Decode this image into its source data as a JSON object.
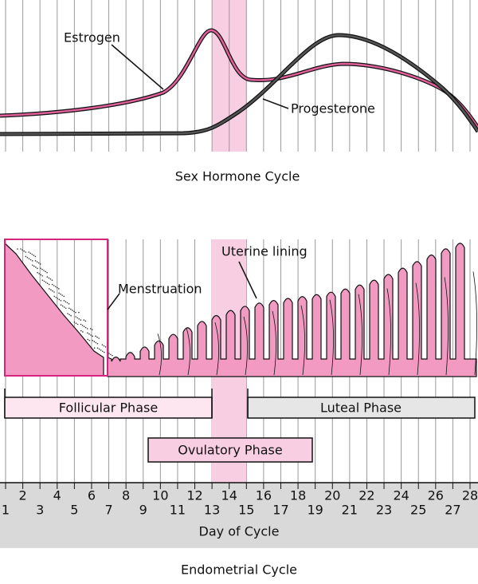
{
  "hormones": {
    "title": "Sex Hormone Cycle",
    "estrogen": "Estrogen",
    "progesterone": "Progesterone"
  },
  "lining": {
    "menstruation": "Menstruation",
    "uterine_lining": "Uterine lining"
  },
  "phases": {
    "follicular": "Follicular Phase",
    "ovulatory": "Ovulatory Phase",
    "luteal": "Luteal Phase"
  },
  "axis": {
    "days": [
      1,
      2,
      3,
      4,
      5,
      6,
      7,
      8,
      9,
      10,
      11,
      12,
      13,
      14,
      15,
      16,
      17,
      18,
      19,
      20,
      21,
      22,
      23,
      24,
      25,
      26,
      27,
      28
    ],
    "label": "Day of Cycle"
  },
  "title": "Endometrial Cycle"
}
